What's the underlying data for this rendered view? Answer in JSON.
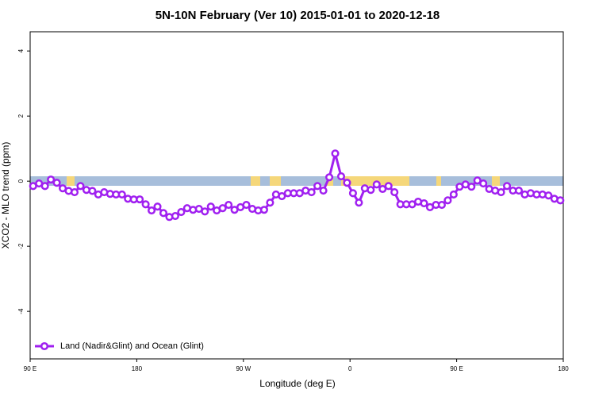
{
  "chart_data": {
    "type": "line",
    "title": "5N-10N February (Ver 10)   2015-01-01 to 2020-12-18",
    "x_label": "Longitude (deg E)",
    "y_label": "XCO2 - MLO trend (ppm)",
    "xlim": [
      90,
      540
    ],
    "xticks": [
      {
        "value": 90,
        "label": "90 E"
      },
      180,
      {
        "value": 270,
        "label": "90 W"
      },
      {
        "value": 360,
        "label": "0"
      },
      {
        "value": 450,
        "label": "90 E"
      },
      {
        "value": 540,
        "label": "180"
      }
    ],
    "ylim": [
      -5.46,
      4.59
    ],
    "yticks": [
      -4,
      -2,
      0,
      2,
      4
    ],
    "legend": "bottom-left",
    "x": [
      92.5,
      97.5,
      102.5,
      107.5,
      112.5,
      117.5,
      122.5,
      127.5,
      132.5,
      137.5,
      142.5,
      147.5,
      152.5,
      157.5,
      162.5,
      167.5,
      172.5,
      177.5,
      182.5,
      187.5,
      192.5,
      197.5,
      202.5,
      207.5,
      212.5,
      217.5,
      222.5,
      227.5,
      232.5,
      237.5,
      242.5,
      247.5,
      252.5,
      257.5,
      262.5,
      267.5,
      272.5,
      277.5,
      282.5,
      287.5,
      292.5,
      297.5,
      302.5,
      307.5,
      312.5,
      317.5,
      322.5,
      327.5,
      332.5,
      337.5,
      342.5,
      347.5,
      352.5,
      357.5,
      362.5,
      367.5,
      372.5,
      377.5,
      382.5,
      387.5,
      392.5,
      397.5,
      402.5,
      407.5,
      412.5,
      417.5,
      422.5,
      427.5,
      432.5,
      437.5,
      442.5,
      447.5,
      452.5,
      457.5,
      462.5,
      467.5,
      472.5,
      477.5,
      482.5,
      487.5,
      492.5,
      497.5,
      502.5,
      507.5,
      512.5,
      517.5,
      522.5,
      527.5,
      532.5,
      537.5
    ],
    "series": [
      {
        "name": "Land (Nadir&Glint) and Ocean (Glint)",
        "color": "#a020f0",
        "values": [
          -0.15,
          -0.07,
          -0.15,
          0.05,
          -0.05,
          -0.22,
          -0.3,
          -0.34,
          -0.15,
          -0.27,
          -0.3,
          -0.41,
          -0.34,
          -0.39,
          -0.41,
          -0.41,
          -0.54,
          -0.56,
          -0.56,
          -0.71,
          -0.9,
          -0.78,
          -0.98,
          -1.1,
          -1.07,
          -0.95,
          -0.83,
          -0.88,
          -0.85,
          -0.93,
          -0.78,
          -0.9,
          -0.83,
          -0.73,
          -0.88,
          -0.8,
          -0.73,
          -0.85,
          -0.9,
          -0.88,
          -0.66,
          -0.41,
          -0.46,
          -0.37,
          -0.37,
          -0.37,
          -0.29,
          -0.34,
          -0.15,
          -0.29,
          0.12,
          0.85,
          0.15,
          -0.05,
          -0.37,
          -0.66,
          -0.22,
          -0.27,
          -0.1,
          -0.24,
          -0.15,
          -0.34,
          -0.71,
          -0.71,
          -0.71,
          -0.63,
          -0.68,
          -0.8,
          -0.73,
          -0.73,
          -0.59,
          -0.41,
          -0.17,
          -0.1,
          -0.17,
          0.02,
          -0.07,
          -0.24,
          -0.29,
          -0.34,
          -0.15,
          -0.29,
          -0.29,
          -0.41,
          -0.37,
          -0.41,
          -0.41,
          -0.44,
          -0.54,
          -0.59
        ]
      }
    ]
  }
}
